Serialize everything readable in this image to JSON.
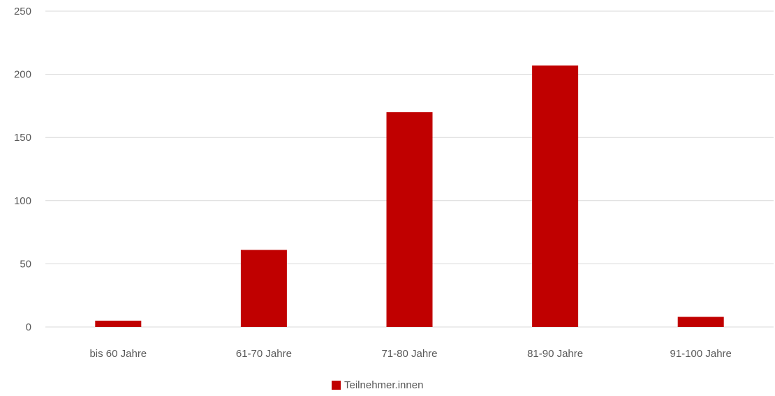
{
  "chart_data": {
    "type": "bar",
    "categories": [
      "bis 60 Jahre",
      "61-70 Jahre",
      "71-80 Jahre",
      "81-90 Jahre",
      "91-100 Jahre"
    ],
    "series": [
      {
        "name": "Teilnehmer.innen",
        "values": [
          5,
          61,
          170,
          207,
          8
        ],
        "color": "#c00000"
      }
    ],
    "ylim": [
      0,
      250
    ],
    "yticks": [
      0,
      50,
      100,
      150,
      200,
      250
    ],
    "grid": true,
    "legend": "bottom-center",
    "title": "",
    "xlabel": "",
    "ylabel": ""
  }
}
